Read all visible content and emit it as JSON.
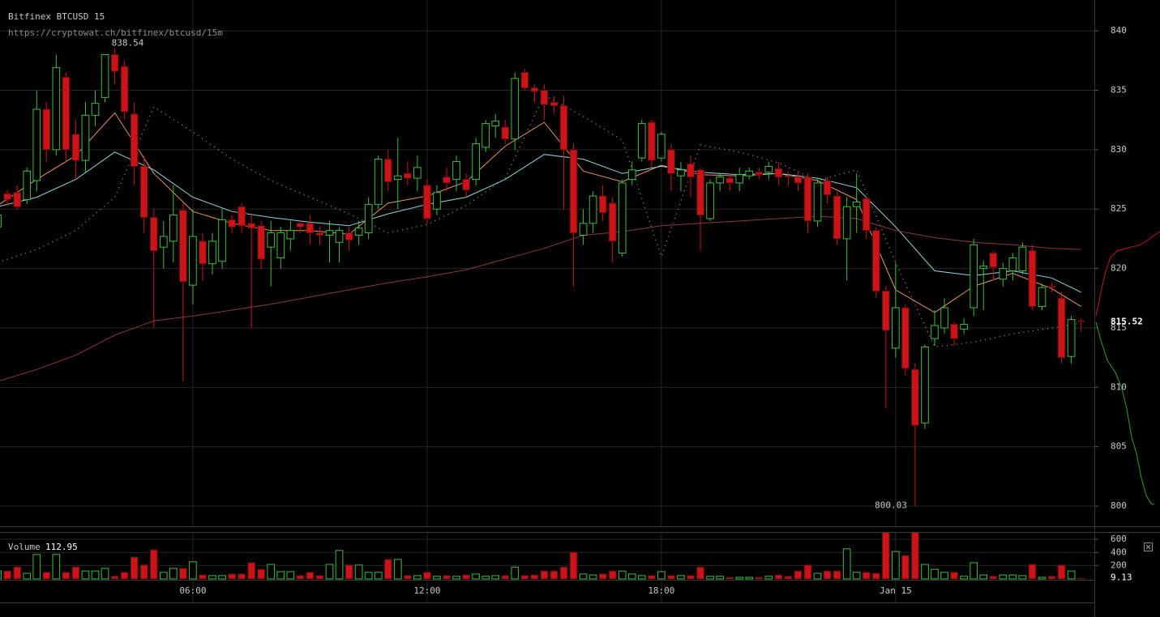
{
  "chart_data": {
    "type": "candlestick",
    "title": "Bitfinex BTCUSD 15",
    "subtitle": "https://cryptowat.ch/bitfinex/btcusd/15m",
    "up_color": "#3cbf3c",
    "down_color": "#cc1418",
    "grid": true,
    "xlim": [
      1.06,
      29.09
    ],
    "xticks": [
      {
        "value": 6,
        "label": "06:00"
      },
      {
        "value": 12,
        "label": "12:00"
      },
      {
        "value": 18,
        "label": "18:00"
      },
      {
        "value": 24,
        "label": "Jan 15"
      }
    ],
    "ylim": [
      798.3,
      842.6
    ],
    "yticks": [
      800,
      805,
      810,
      815,
      820,
      825,
      830,
      835,
      840
    ],
    "x": [
      1,
      1.25,
      1.5,
      1.75,
      2,
      2.25,
      2.5,
      2.75,
      3,
      3.25,
      3.5,
      3.75,
      4,
      4.25,
      4.5,
      4.75,
      5,
      5.25,
      5.5,
      5.75,
      6,
      6.25,
      6.5,
      6.75,
      7,
      7.25,
      7.5,
      7.75,
      8,
      8.25,
      8.5,
      8.75,
      9,
      9.25,
      9.5,
      9.75,
      10,
      10.25,
      10.5,
      10.75,
      11,
      11.25,
      11.5,
      11.75,
      12,
      12.25,
      12.5,
      12.75,
      13,
      13.25,
      13.5,
      13.75,
      14,
      14.25,
      14.5,
      14.75,
      15,
      15.25,
      15.5,
      15.75,
      16,
      16.25,
      16.5,
      16.75,
      17,
      17.25,
      17.5,
      17.75,
      18,
      18.25,
      18.5,
      18.75,
      19,
      19.25,
      19.5,
      19.75,
      20,
      20.25,
      20.5,
      20.75,
      21,
      21.25,
      21.5,
      21.75,
      22,
      22.25,
      22.5,
      22.75,
      23,
      23.25,
      23.5,
      23.75,
      24,
      24.25,
      24.5,
      24.75,
      25,
      25.25,
      25.5,
      25.75,
      26,
      26.25,
      26.5,
      26.75,
      27,
      27.25,
      27.5,
      27.75,
      28,
      28.25,
      28.5,
      28.75
    ],
    "open": [
      823.5,
      826.3,
      826.4,
      825.8,
      827.4,
      833.4,
      830,
      836.1,
      831.3,
      829.1,
      832.9,
      834.4,
      838,
      837,
      833,
      828.6,
      824.3,
      821.8,
      822.3,
      824.9,
      818.6,
      822.3,
      820.4,
      820.6,
      824.1,
      825.2,
      823.8,
      823.6,
      821.8,
      820.9,
      822.5,
      823.8,
      823.8,
      823,
      822.8,
      822.2,
      823,
      822.8,
      823,
      825.4,
      829.2,
      827.5,
      828,
      827.6,
      827,
      825,
      827.7,
      827.5,
      827.5,
      827.5,
      830.2,
      832,
      831.9,
      830.9,
      836.5,
      835.2,
      835,
      834,
      833.7,
      830,
      822.8,
      823.8,
      826.1,
      825.5,
      821.3,
      827.5,
      829.3,
      832.3,
      829.3,
      830,
      827.8,
      828.8,
      828.3,
      824.2,
      827.2,
      827.6,
      827.2,
      827.8,
      828.1,
      828.1,
      828.4,
      827.8,
      827.7,
      827.7,
      824,
      827.4,
      826.1,
      822.5,
      825.2,
      825.9,
      823.2,
      818.1,
      813.3,
      816.7,
      811.5,
      807,
      814.1,
      815,
      815.3,
      814.9,
      816.7,
      820,
      821.3,
      819.1,
      819.8,
      819.8,
      821.5,
      816.8,
      818.5,
      817.5,
      812.6,
      815.6
    ],
    "high": [
      825,
      826.6,
      827,
      828.5,
      835,
      834,
      838,
      836.5,
      832.5,
      834,
      835,
      838,
      838.54,
      837.5,
      834,
      829.5,
      825,
      824,
      827,
      825.5,
      825,
      823,
      823,
      825,
      824.5,
      825.5,
      824.5,
      824,
      824,
      823.5,
      824,
      824,
      824.5,
      823.5,
      824,
      823.5,
      823.5,
      824,
      826,
      829.5,
      830,
      831,
      829,
      829.5,
      827.5,
      827,
      828.5,
      829.5,
      828,
      831,
      832.5,
      833,
      832.5,
      836.5,
      836.8,
      835.5,
      835.5,
      834.5,
      834.5,
      830.5,
      825,
      826.5,
      827,
      826,
      827.5,
      829,
      832.5,
      832.5,
      831.5,
      830.5,
      829,
      829.5,
      828.5,
      827.5,
      828,
      828,
      828.5,
      828.5,
      828.5,
      829,
      829,
      828.2,
      828.2,
      828,
      827.5,
      827.7,
      826.5,
      826,
      828,
      826,
      823.5,
      818.5,
      820.5,
      817,
      812,
      813.6,
      816.5,
      817.5,
      815.5,
      815.8,
      822.5,
      820.7,
      821.5,
      820.5,
      821.3,
      822.2,
      822,
      818.7,
      818.8,
      818,
      816,
      815.8
    ],
    "low": [
      823,
      825.3,
      825,
      825.4,
      826.5,
      829,
      829.5,
      829,
      827.5,
      828,
      832,
      834,
      835.5,
      832.5,
      827,
      823,
      815,
      820,
      820.5,
      810.5,
      817,
      819,
      819.5,
      820,
      823,
      823,
      815,
      820,
      818.5,
      820,
      821.5,
      823,
      822,
      822,
      820.5,
      820.5,
      821.5,
      822,
      822.5,
      825,
      826.5,
      825,
      827,
      826.5,
      823.8,
      824.5,
      826.5,
      826.5,
      826,
      827,
      829.8,
      831,
      830.5,
      830,
      835,
      834,
      832.5,
      833,
      825,
      818.5,
      822,
      823,
      824,
      820.5,
      821,
      827,
      829,
      828.5,
      829,
      826.5,
      826.5,
      826,
      821.5,
      824,
      826.5,
      826.5,
      826.5,
      827.5,
      827.5,
      827.5,
      827,
      827,
      826.5,
      823,
      823.5,
      825.5,
      822,
      819,
      823,
      822.5,
      817.5,
      808.2,
      812.5,
      811,
      800.03,
      806.5,
      813.5,
      814.5,
      813.5,
      814.5,
      816,
      816.5,
      819,
      818.5,
      819,
      819.5,
      816.5,
      816.5,
      818,
      812,
      812,
      814.7
    ],
    "close": [
      824.5,
      825.8,
      825.2,
      828.2,
      833.4,
      830,
      836.9,
      830,
      829.1,
      832.9,
      833.9,
      838,
      836.6,
      833.2,
      828.6,
      824.3,
      821.5,
      822.7,
      824.5,
      818.9,
      822.7,
      820.4,
      822.3,
      824.1,
      823.5,
      823.6,
      823.4,
      820.8,
      823,
      823,
      823.2,
      823.5,
      823,
      822.8,
      823.2,
      823.2,
      822.4,
      823.4,
      825.4,
      829.2,
      827.3,
      827.8,
      827.6,
      828.5,
      824.2,
      826.4,
      827.2,
      829,
      826.6,
      830.5,
      832.2,
      832.4,
      830.9,
      836,
      835.2,
      834.9,
      833.8,
      833.7,
      830,
      823,
      823.8,
      826.1,
      824.7,
      822.3,
      827.2,
      828.3,
      832.2,
      829.1,
      831.3,
      828,
      828.3,
      827.7,
      824.5,
      827.2,
      827.7,
      827.2,
      827.9,
      828.2,
      827.9,
      828.6,
      827.7,
      827.7,
      827.2,
      824,
      827.2,
      826.2,
      822.5,
      825.2,
      825.6,
      823.2,
      818.1,
      814.8,
      816.7,
      811.6,
      806.8,
      813.4,
      815.2,
      816.7,
      814.1,
      815.3,
      822,
      820.2,
      820.1,
      820,
      820.9,
      821.8,
      816.8,
      818.4,
      818.4,
      812.5,
      815.7,
      815.52
    ],
    "indicators": [
      {
        "color": "#e8955a",
        "x": [
          1,
          2,
          3,
          4,
          5,
          6,
          7,
          8,
          9,
          10,
          11,
          12,
          13,
          14,
          15,
          16,
          17,
          18,
          19,
          20,
          21,
          22,
          23,
          24,
          25,
          26,
          27,
          28,
          28.75
        ],
        "values": [
          825.3,
          827.5,
          829.5,
          833.1,
          828,
          824.8,
          823.8,
          823.2,
          823.2,
          822.9,
          825.5,
          826.1,
          827.3,
          830.3,
          832.3,
          828.2,
          827.3,
          828.7,
          827.9,
          827.8,
          828,
          827.4,
          825.8,
          818.2,
          816.3,
          818.5,
          819.6,
          818.3,
          816.8
        ]
      },
      {
        "color": "#8fd6e0",
        "x": [
          1,
          2,
          3,
          4,
          5,
          6,
          7,
          8,
          9,
          10,
          11,
          12,
          13,
          14,
          15,
          16,
          17,
          18,
          19,
          20,
          21,
          22,
          23,
          24,
          25,
          26,
          27,
          28,
          28.75
        ],
        "values": [
          825.2,
          826,
          827.5,
          829.8,
          828.3,
          826,
          824.8,
          824.3,
          823.9,
          823.6,
          824.6,
          825.4,
          826,
          827.5,
          829.6,
          829.2,
          828,
          828.6,
          828.1,
          827.9,
          828,
          827.6,
          826.8,
          823.5,
          819.8,
          819.4,
          819.8,
          819.2,
          818
        ]
      },
      {
        "color": "#8c3a3e",
        "x": [
          1,
          2,
          3,
          4,
          5,
          6,
          7,
          8,
          9,
          10,
          11,
          12,
          13,
          14,
          15,
          16,
          17,
          18,
          19,
          20,
          21,
          22,
          23,
          24,
          25,
          26,
          27,
          28,
          28.75
        ],
        "values": [
          810.5,
          811.5,
          812.7,
          814.4,
          815.6,
          816,
          816.5,
          817,
          817.6,
          818.2,
          818.8,
          819.3,
          819.9,
          820.8,
          821.7,
          822.8,
          823.1,
          823.6,
          823.8,
          824,
          824.2,
          824.4,
          824.2,
          823.2,
          822.6,
          822.2,
          822,
          821.7,
          821.6
        ]
      },
      {
        "color": "#8a8a8a",
        "dash": "1 5",
        "x": [
          1,
          2,
          3,
          4,
          5,
          6,
          7,
          8,
          9,
          10,
          11,
          12,
          13,
          14,
          15,
          16,
          17,
          18,
          19,
          20,
          21,
          22,
          23,
          24,
          25,
          26,
          27,
          28,
          28.75
        ],
        "values": [
          820.5,
          821.6,
          823.2,
          826,
          833.6,
          831.5,
          829.2,
          827.4,
          826,
          824.6,
          823,
          823.7,
          825.3,
          827.6,
          834.6,
          832.8,
          830.8,
          821,
          830.4,
          829.8,
          828.9,
          827.4,
          828.3,
          820.5,
          813.4,
          813.8,
          814.5,
          815,
          815.4
        ]
      }
    ],
    "volume_label": "Volume",
    "volume_value": 112.95,
    "volume_ylim": [
      0,
      698
    ],
    "volume_yticks": [
      200,
      400,
      600
    ],
    "volume": [
      120,
      120,
      180,
      85,
      370,
      100,
      370,
      100,
      180,
      120,
      120,
      160,
      40,
      100,
      330,
      210,
      440,
      100,
      160,
      160,
      260,
      60,
      50,
      50,
      75,
      75,
      245,
      145,
      220,
      110,
      110,
      50,
      100,
      50,
      220,
      430,
      210,
      210,
      100,
      100,
      295,
      295,
      50,
      50,
      100,
      40,
      50,
      40,
      60,
      75,
      40,
      50,
      50,
      180,
      50,
      60,
      120,
      120,
      180,
      405,
      75,
      60,
      75,
      120,
      120,
      75,
      50,
      50,
      110,
      50,
      50,
      50,
      180,
      40,
      40,
      25,
      25,
      25,
      25,
      40,
      60,
      40,
      120,
      210,
      85,
      120,
      120,
      455,
      100,
      100,
      85,
      760,
      415,
      355,
      720,
      220,
      145,
      100,
      100,
      40,
      245,
      60,
      40,
      60,
      60,
      50,
      220,
      25,
      40,
      210,
      120,
      9.13
    ]
  }
}
